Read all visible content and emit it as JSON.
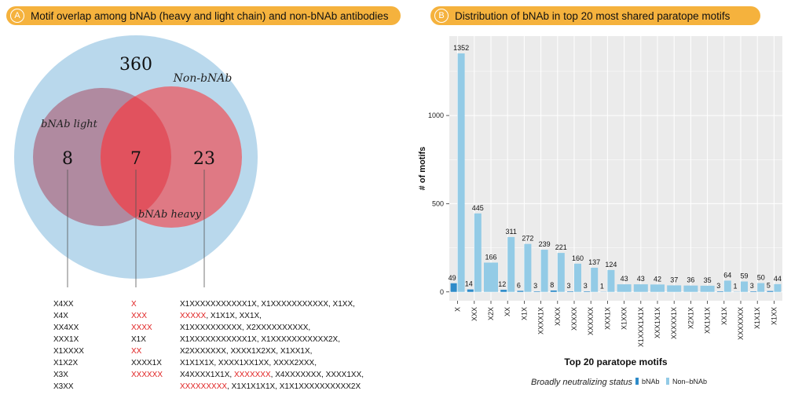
{
  "panel_a": {
    "letter": "A",
    "title": "Motif overlap among bNAb (heavy and light chain) and non-bNAb antibodies",
    "venn": {
      "non_bnab_label": "Non-bNAb",
      "bnab_light_label": "bNAb light",
      "bnab_heavy_label": "bNAb heavy",
      "count_non_bnab_only": "360",
      "count_light_only": "8",
      "count_shared": "7",
      "count_heavy_only": "23",
      "colors": {
        "non_bnab": "#b9d8ec",
        "bnab_light": "#b08aa0",
        "bnab_heavy": "#e0747e",
        "overlap": "#e1525e"
      }
    },
    "motif_lists": {
      "light_only": [
        "X4XX",
        "X4X",
        "XX4XX",
        "XXX1X",
        "X1XXXX",
        "X1X2X",
        "X3X",
        "X3XX"
      ],
      "shared": [
        {
          "text": "X",
          "red": true
        },
        {
          "text": "XXX",
          "red": true
        },
        {
          "text": "XXXX",
          "red": true
        },
        {
          "text": "X1X",
          "red": false
        },
        {
          "text": "XX",
          "red": true
        },
        {
          "text": "XXXX1X",
          "red": false
        },
        {
          "text": "XXXXXX",
          "red": true
        }
      ],
      "heavy_only": [
        [
          {
            "text": "X1XXXXXXXXXXX1X, X1XXXXXXXXXXX, X1XX,",
            "red": false
          }
        ],
        [
          {
            "text": "XXXXX",
            "red": true
          },
          {
            "text": ", X1X1X, XX1X,",
            "red": false
          }
        ],
        [
          {
            "text": "X1XXXXXXXXXX, X2XXXXXXXXXX,",
            "red": false
          }
        ],
        [
          {
            "text": "X1XXXXXXXXXXX1X,  X1XXXXXXXXXXX2X,",
            "red": false
          }
        ],
        [
          {
            "text": "X2XXXXXXX, XXXX1X2XX, X1XX1X,",
            "red": false
          }
        ],
        [
          {
            "text": "X1X1X1X, XXXX1XX1XX, XXXX2XXX,",
            "red": false
          }
        ],
        [
          {
            "text": "X4XXXX1X1X, ",
            "red": false
          },
          {
            "text": "XXXXXXX",
            "red": true
          },
          {
            "text": ", X4XXXXXXX, XXXX1XX,",
            "red": false
          }
        ],
        [
          {
            "text": "XXXXXXXXX",
            "red": true
          },
          {
            "text": ", X1X1X1X1X, X1X1XXXXXXXXXX2X",
            "red": false
          }
        ]
      ]
    }
  },
  "panel_b": {
    "letter": "B",
    "title": "Distribution of bNAb in top 20 most shared paratope motifs"
  },
  "chart_data": {
    "type": "bar",
    "title": "Distribution of bNAb in top 20 most shared paratope motifs",
    "xlabel": "Top 20 paratope motifs",
    "ylabel": "# of motifs",
    "ylim": [
      0,
      1400
    ],
    "yticks": [
      0,
      500,
      1000
    ],
    "grid": true,
    "categories": [
      "X",
      "XXX",
      "X2X",
      "XX",
      "X1X",
      "XXXX1X",
      "XXXX",
      "XXXXX",
      "XXXXXX",
      "XXX1X",
      "X1XXX",
      "X1XXX1X1X",
      "XXX1X1X",
      "XXXXX1X",
      "X2X1X",
      "XX1X1X",
      "XX1X",
      "XXXXXXX",
      "X1X1X",
      "X1XX"
    ],
    "series": [
      {
        "name": "bNAb",
        "color": "#2e8bc9",
        "values": [
          49,
          14,
          0,
          12,
          6,
          3,
          8,
          3,
          3,
          1,
          0,
          0,
          0,
          0,
          0,
          0,
          3,
          1,
          3,
          5
        ]
      },
      {
        "name": "Non–bNAb",
        "color": "#93cbe6",
        "values": [
          1352,
          445,
          166,
          311,
          272,
          239,
          221,
          160,
          137,
          124,
          43,
          43,
          42,
          37,
          36,
          35,
          64,
          59,
          50,
          44
        ]
      }
    ],
    "legend": {
      "title": "Broadly neutralizing status",
      "position": "bottom"
    }
  }
}
